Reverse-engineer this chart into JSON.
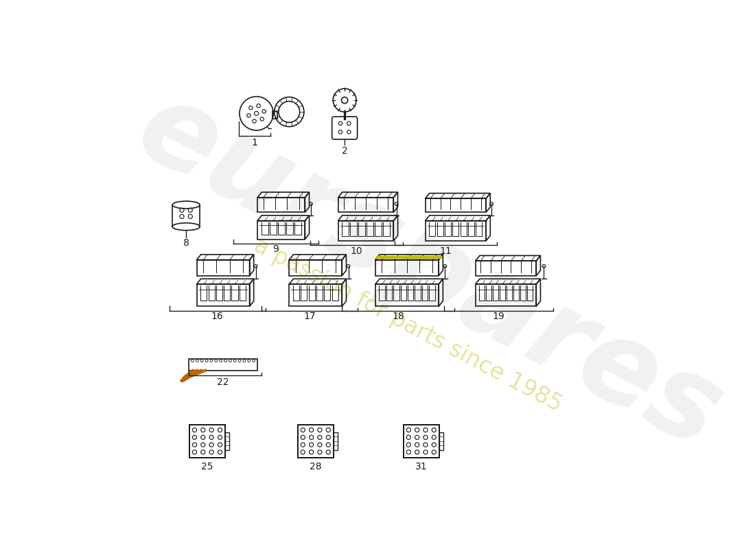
{
  "background_color": "#ffffff",
  "line_color": "#1a1a1a",
  "watermark_color": "#e5e5e5",
  "watermark_text": "eurspares",
  "watermark_subtext": "a passion for parts since 1985",
  "watermark_yellow": "#d4cc30",
  "part_labels": [
    "1",
    "2",
    "8",
    "9",
    "10",
    "11",
    "16",
    "17",
    "18",
    "19",
    "22",
    "25",
    "28",
    "31"
  ],
  "accent_color": "#aaaa00"
}
